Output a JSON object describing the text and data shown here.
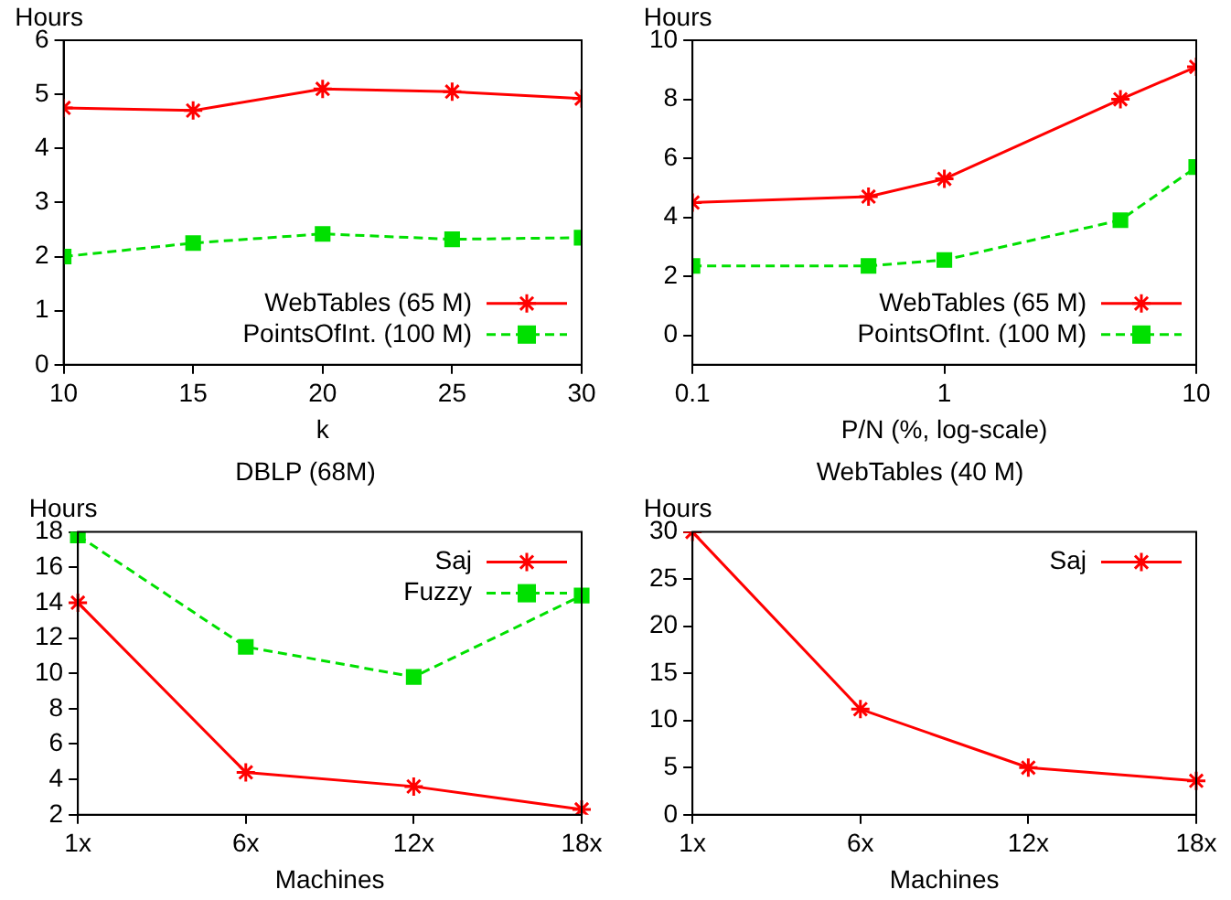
{
  "chart_data": [
    {
      "type": "line",
      "xlabel": "k",
      "ylabel": "Hours",
      "x": [
        10,
        15,
        20,
        25,
        30
      ],
      "xlim": [
        10,
        30
      ],
      "xticks": [
        10,
        15,
        20,
        25,
        30
      ],
      "ylim": [
        0,
        6
      ],
      "yticks": [
        0,
        1,
        2,
        3,
        4,
        5,
        6
      ],
      "grid": false,
      "legend": "bottom right",
      "series": [
        {
          "name": "WebTables (65 M)",
          "color": "#ff0000",
          "marker": "cross",
          "line_style": "solid",
          "values": [
            4.75,
            4.7,
            5.1,
            5.05,
            4.92
          ]
        },
        {
          "name": "PointsOfInt. (100 M)",
          "color": "#00e000",
          "marker": "square",
          "line_style": "dashed",
          "values": [
            2.0,
            2.25,
            2.42,
            2.32,
            2.35
          ]
        }
      ]
    },
    {
      "type": "line",
      "xlabel": "P/N (%, log-scale)",
      "ylabel": "Hours",
      "log": "x",
      "x": [
        0.1,
        0.5,
        1,
        5,
        10
      ],
      "xlim": [
        0.1,
        10
      ],
      "xticks": [
        0.1,
        1,
        10
      ],
      "ylim": [
        -1,
        10
      ],
      "yticks": [
        0,
        2,
        4,
        6,
        8,
        10
      ],
      "grid": false,
      "legend": "bottom right",
      "series": [
        {
          "name": "WebTables (65 M)",
          "color": "#ff0000",
          "marker": "cross",
          "line_style": "solid",
          "values": [
            4.5,
            4.7,
            5.3,
            8.0,
            9.1
          ]
        },
        {
          "name": "PointsOfInt. (100 M)",
          "color": "#00e000",
          "marker": "square",
          "line_style": "dashed",
          "values": [
            2.35,
            2.35,
            2.55,
            3.9,
            5.7
          ]
        }
      ]
    },
    {
      "type": "line",
      "title": "DBLP (68M)",
      "xlabel": "Machines",
      "ylabel": "Hours",
      "categories": [
        "1x",
        "6x",
        "12x",
        "18x"
      ],
      "ylim": [
        2,
        18
      ],
      "yticks": [
        2,
        4,
        6,
        8,
        10,
        12,
        14,
        16,
        18
      ],
      "grid": false,
      "legend": "top right",
      "series": [
        {
          "name": "Saj",
          "color": "#ff0000",
          "marker": "cross",
          "line_style": "solid",
          "values": [
            14,
            4.4,
            3.6,
            2.3
          ]
        },
        {
          "name": "Fuzzy",
          "color": "#00e000",
          "marker": "square",
          "line_style": "dashed",
          "values": [
            17.8,
            11.5,
            9.8,
            14.4
          ]
        }
      ]
    },
    {
      "type": "line",
      "title": "WebTables (40 M)",
      "xlabel": "Machines",
      "ylabel": "Hours",
      "categories": [
        "1x",
        "6x",
        "12x",
        "18x"
      ],
      "ylim": [
        0,
        30
      ],
      "yticks": [
        0,
        5,
        10,
        15,
        20,
        25,
        30
      ],
      "grid": false,
      "legend": "top right",
      "series": [
        {
          "name": "Saj",
          "color": "#ff0000",
          "marker": "cross",
          "line_style": "solid",
          "values": [
            30,
            11.2,
            5,
            3.6
          ]
        }
      ]
    }
  ]
}
